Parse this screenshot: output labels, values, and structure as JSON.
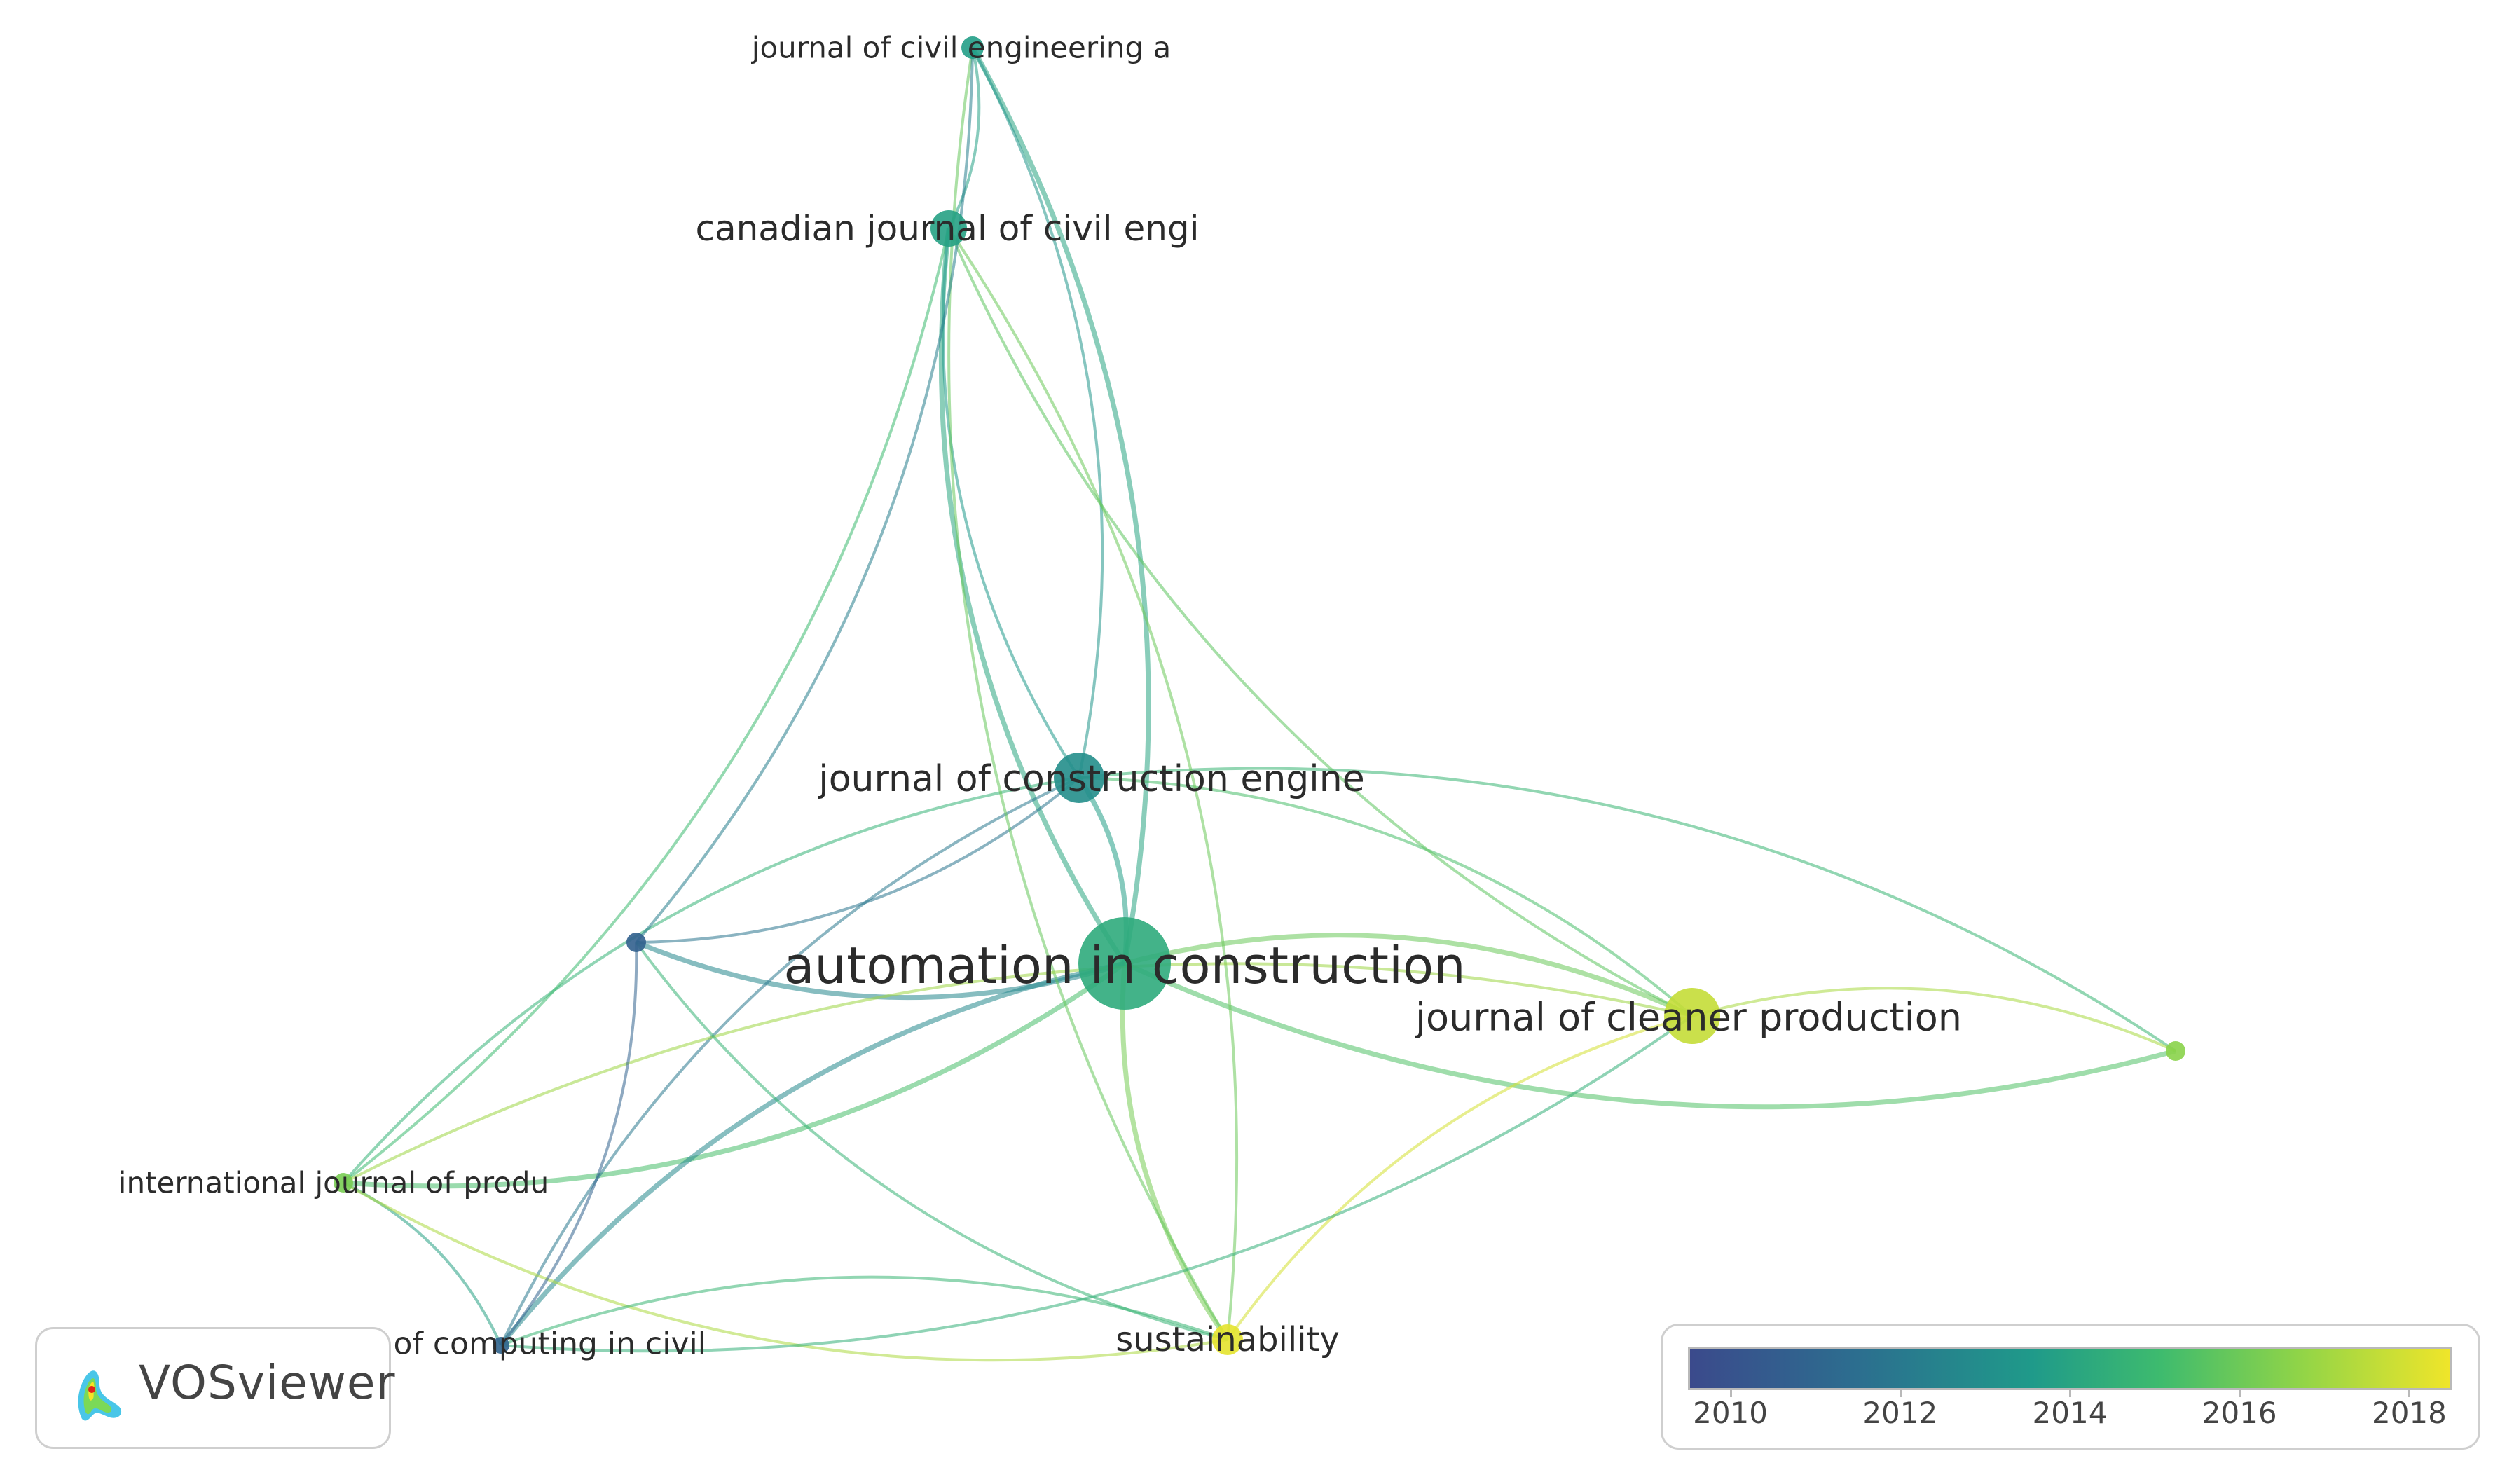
{
  "nodes": [
    {
      "id": "civil-eng-a",
      "label": "journal of civil engineering a",
      "year": 2013.3
    },
    {
      "id": "canadian",
      "label": "canadian journal of civil engi",
      "year": 2013.5
    },
    {
      "id": "construction-eng",
      "label": "journal of construction engine",
      "year": 2012.6
    },
    {
      "id": "automation",
      "label": "automation in construction",
      "year": 2014.0
    },
    {
      "id": "cleaner",
      "label": "journal of cleaner production",
      "year": 2017.7
    },
    {
      "id": "int-prod",
      "label": "international journal of produ",
      "year": 2016.2
    },
    {
      "id": "computing-civil",
      "label": "journal of computing in civil",
      "year": 2010.8
    },
    {
      "id": "sustainability",
      "label": "sustainability",
      "year": 2018.3
    },
    {
      "id": "unlabeled-purple",
      "label": "",
      "year": 2010.6
    },
    {
      "id": "unlabeled-green",
      "label": "",
      "year": 2016.6
    }
  ],
  "links": [
    {
      "source": "automation",
      "target": "construction-eng"
    },
    {
      "source": "automation",
      "target": "canadian"
    },
    {
      "source": "automation",
      "target": "civil-eng-a"
    },
    {
      "source": "automation",
      "target": "cleaner"
    },
    {
      "source": "automation",
      "target": "sustainability"
    },
    {
      "source": "automation",
      "target": "int-prod"
    },
    {
      "source": "automation",
      "target": "computing-civil"
    },
    {
      "source": "automation",
      "target": "unlabeled-purple"
    },
    {
      "source": "automation",
      "target": "unlabeled-green"
    },
    {
      "source": "construction-eng",
      "target": "canadian"
    },
    {
      "source": "construction-eng",
      "target": "civil-eng-a"
    },
    {
      "source": "construction-eng",
      "target": "unlabeled-purple"
    },
    {
      "source": "construction-eng",
      "target": "computing-civil"
    },
    {
      "source": "construction-eng",
      "target": "unlabeled-green"
    },
    {
      "source": "construction-eng",
      "target": "int-prod"
    },
    {
      "source": "construction-eng",
      "target": "cleaner"
    },
    {
      "source": "canadian",
      "target": "civil-eng-a"
    },
    {
      "source": "canadian",
      "target": "sustainability"
    },
    {
      "source": "canadian",
      "target": "cleaner"
    },
    {
      "source": "canadian",
      "target": "int-prod"
    },
    {
      "source": "civil-eng-a",
      "target": "sustainability"
    },
    {
      "source": "civil-eng-a",
      "target": "unlabeled-purple"
    },
    {
      "source": "cleaner",
      "target": "sustainability"
    },
    {
      "source": "cleaner",
      "target": "unlabeled-green"
    },
    {
      "source": "cleaner",
      "target": "int-prod"
    },
    {
      "source": "int-prod",
      "target": "computing-civil"
    },
    {
      "source": "int-prod",
      "target": "sustainability"
    },
    {
      "source": "unlabeled-purple",
      "target": "computing-civil"
    },
    {
      "source": "unlabeled-purple",
      "target": "sustainability"
    },
    {
      "source": "computing-civil",
      "target": "sustainability"
    },
    {
      "source": "computing-civil",
      "target": "cleaner"
    }
  ],
  "logo": {
    "text": "VOSviewer"
  },
  "legend": {
    "ticks": [
      "2010",
      "2012",
      "2014",
      "2016",
      "2018"
    ],
    "colors": [
      "#3b4a8c",
      "#2c6e8f",
      "#1f9a8a",
      "#3ebb6e",
      "#8fd448",
      "#efe52a"
    ]
  }
}
